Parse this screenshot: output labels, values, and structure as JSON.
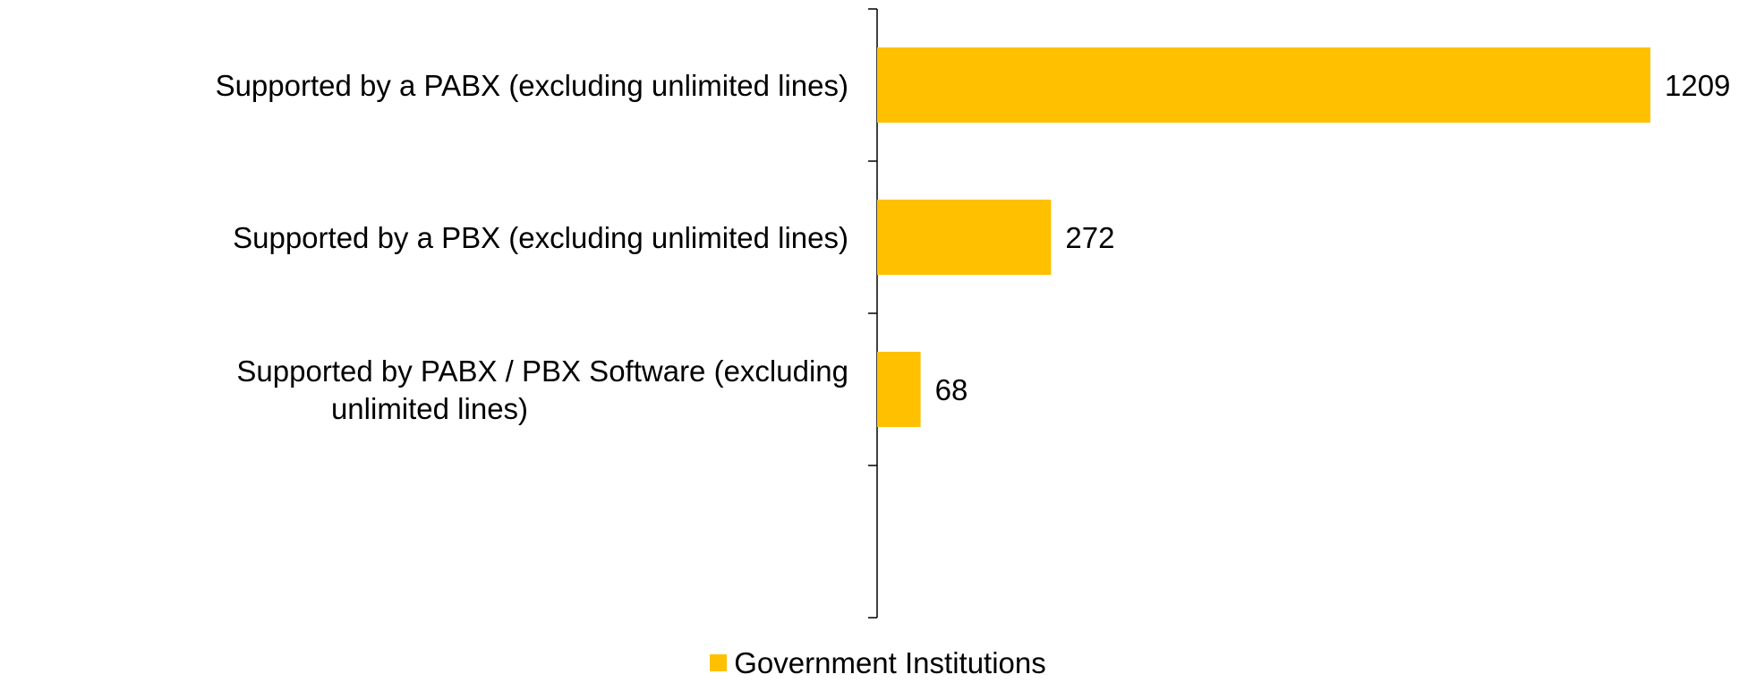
{
  "chart_data": {
    "type": "bar",
    "orientation": "horizontal",
    "categories": [
      "Supported by a PABX (excluding unlimited lines)",
      "Supported by a PBX (excluding unlimited lines)",
      "Supported by PABX / PBX Software (excluding unlimited lines)",
      ""
    ],
    "series": [
      {
        "name": "Government Institutions",
        "values": [
          1209,
          272,
          68,
          null
        ],
        "color": "#FFC000"
      }
    ],
    "data_labels": [
      "1209",
      "272",
      "68",
      ""
    ],
    "xlim": [
      0,
      1209
    ],
    "grid": false,
    "legend": "bottom-center"
  }
}
